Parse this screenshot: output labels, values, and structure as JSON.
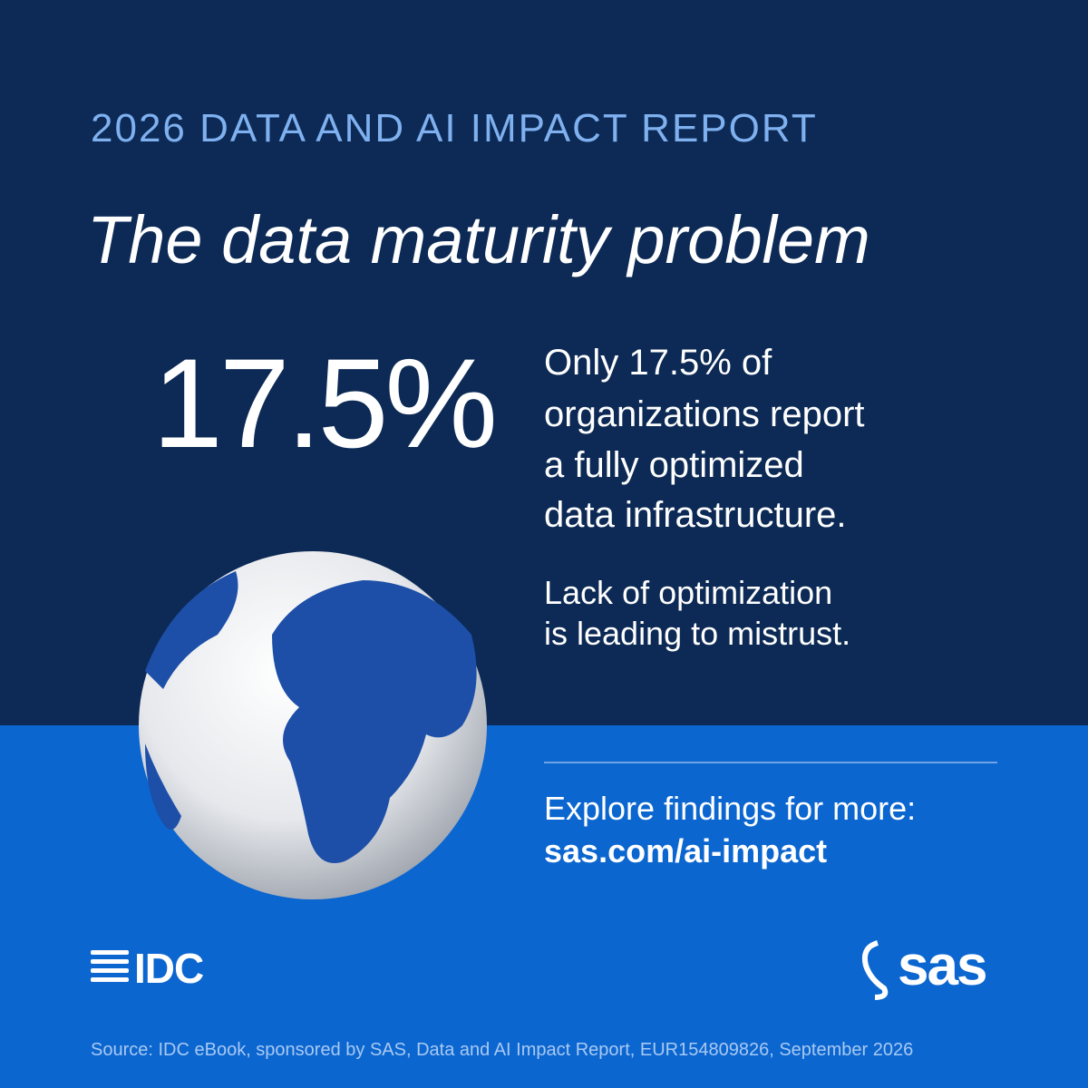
{
  "header": {
    "kicker": "2026 DATA AND AI IMPACT REPORT",
    "title": "The data maturity problem"
  },
  "stat": {
    "value": "17.5%",
    "description": [
      "Only 17.5% of",
      "organizations report",
      "a fully optimized",
      "data infrastructure."
    ]
  },
  "note": [
    "Lack of optimization",
    "is leading to mistrust."
  ],
  "cta": {
    "text": "Explore findings for more:",
    "url": "sas.com/ai-impact"
  },
  "logos": {
    "idc": "IDC",
    "sas": "sas"
  },
  "footer": {
    "source": "Source: IDC eBook, sponsored by SAS, Data and AI Impact Report, EUR154809826, September 2026"
  }
}
